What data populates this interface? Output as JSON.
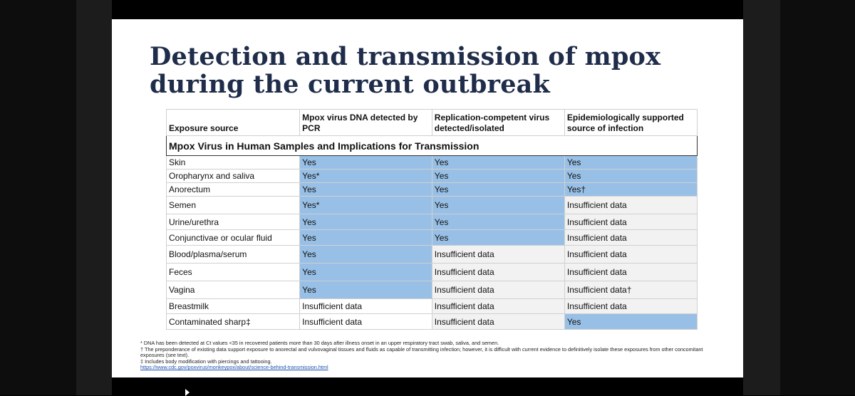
{
  "slide": {
    "title_line1": "Detection and transmission of mpox",
    "title_line2": "during the current outbreak"
  },
  "table": {
    "caption": "Mpox Virus in Human Samples and Implications for Transmission",
    "headers": [
      "Exposure source",
      "Mpox virus DNA detected by PCR",
      "Replication-competent virus detected/isolated",
      "Epidemiologically supported source of infection"
    ],
    "rows": [
      {
        "source": "Skin",
        "pcr": "Yes",
        "virus": "Yes",
        "epi": "Yes"
      },
      {
        "source": "Oropharynx and saliva",
        "pcr": "Yes*",
        "virus": "Yes",
        "epi": "Yes"
      },
      {
        "source": "Anorectum",
        "pcr": "Yes",
        "virus": "Yes",
        "epi": "Yes†"
      },
      {
        "source": "Semen",
        "pcr": "Yes*",
        "virus": "Yes",
        "epi": "Insufficient data"
      },
      {
        "source": "Urine/urethra",
        "pcr": "Yes",
        "virus": "Yes",
        "epi": "Insufficient data"
      },
      {
        "source": "Conjunctivae or ocular fluid",
        "pcr": "Yes",
        "virus": "Yes",
        "epi": "Insufficient data"
      },
      {
        "source": "Blood/plasma/serum",
        "pcr": "Yes",
        "virus": "Insufficient data",
        "epi": "Insufficient data"
      },
      {
        "source": "Feces",
        "pcr": "Yes",
        "virus": "Insufficient data",
        "epi": "Insufficient data"
      },
      {
        "source": "Vagina",
        "pcr": "Yes",
        "virus": "Insufficient data",
        "epi": "Insufficient data†"
      },
      {
        "source": "Breastmilk",
        "pcr": "Insufficient data",
        "virus": "Insufficient data",
        "epi": "Insufficient data"
      },
      {
        "source": "Contaminated sharp‡",
        "pcr": "Insufficient data",
        "virus": "Insufficient data",
        "epi": "Yes"
      }
    ]
  },
  "colors": {
    "yes_fill": "#98c0e6",
    "insufficient_fill": "#f2f2f2",
    "title": "#1f2d4a"
  },
  "footnotes": {
    "star": "* DNA has been detected at Ct values <35 in recovered patients more than 30 days after illness onset in an upper respiratory tract swab, saliva, and semen.",
    "dagger": "† The preponderance of existing data support exposure to anorectal and vulvovaginal tissues and fluids as capable of transmitting infection; however, it is difficult with current evidence to definitively isolate these exposures from other concomitant exposures (see text).",
    "ddagger": "‡ Includes body modification with piercings and tattooing.",
    "link": "https://www.cdc.gov/poxvirus/monkeypox/about/science-behind-transmission.html"
  }
}
